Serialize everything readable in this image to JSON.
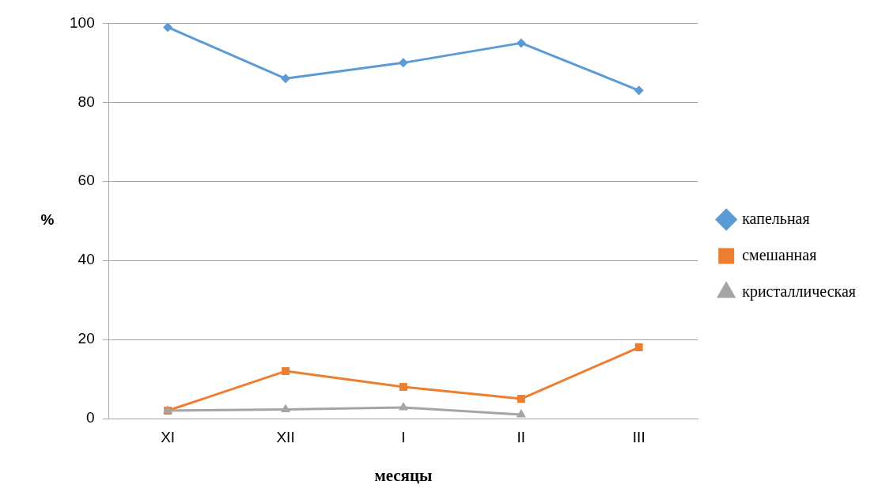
{
  "chart_data": {
    "type": "line",
    "xlabel": "месяцы",
    "ylabel": "%",
    "categories": [
      "XI",
      "XII",
      "I",
      "II",
      "III"
    ],
    "series": [
      {
        "name": "капельная",
        "color": "#5b9bd5",
        "marker": "diamond",
        "values": [
          99,
          86,
          90,
          95,
          83
        ]
      },
      {
        "name": "смешанная",
        "color": "#ed7d31",
        "marker": "square",
        "values": [
          2,
          12,
          8,
          5,
          18
        ]
      },
      {
        "name": "кристаллическая",
        "color": "#a5a5a5",
        "marker": "triangle",
        "values": [
          2,
          2.3,
          2.8,
          1,
          null
        ]
      }
    ],
    "ylim": [
      0,
      100
    ],
    "yticks": [
      0,
      20,
      40,
      60,
      80,
      100
    ],
    "grid": "y",
    "legend": "right"
  }
}
